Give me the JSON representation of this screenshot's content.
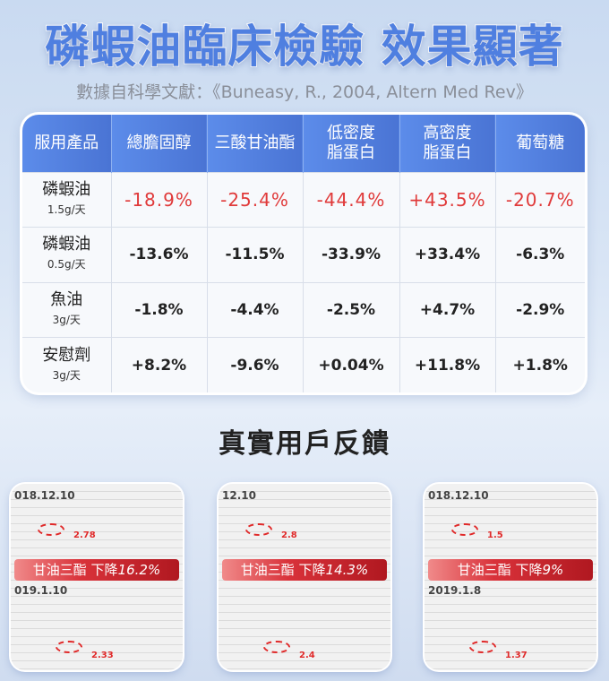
{
  "title": "磷蝦油臨床檢驗 效果顯著",
  "subtitle": "數據自科學文獻：《Buneasy, R., 2004, Altern Med Rev》",
  "table": {
    "headers": [
      "服用產品",
      "總膽固醇",
      "三酸甘油酯",
      "低密度\n脂蛋白",
      "高密度\n脂蛋白",
      "葡萄糖"
    ],
    "rows": [
      {
        "name": "磷蝦油",
        "dose": "1.5g/天",
        "values": [
          "-18.9%",
          "-25.4%",
          "-44.4%",
          "+43.5%",
          "-20.7%"
        ],
        "highlight": true
      },
      {
        "name": "磷蝦油",
        "dose": "0.5g/天",
        "values": [
          "-13.6%",
          "-11.5%",
          "-33.9%",
          "+33.4%",
          "-6.3%"
        ]
      },
      {
        "name": "魚油",
        "dose": "3g/天",
        "values": [
          "-1.8%",
          "-4.4%",
          "-2.5%",
          "+4.7%",
          "-2.9%"
        ]
      },
      {
        "name": "安慰劑",
        "dose": "3g/天",
        "values": [
          "+8.2%",
          "-9.6%",
          "+0.04%",
          "+11.8%",
          "+1.8%"
        ]
      }
    ]
  },
  "section_title": "真實用戶反饋",
  "cards": [
    {
      "date1": "018.12.10",
      "date2": "019.1.10",
      "before": "2.78",
      "after": "2.33",
      "label": "甘油三酯 下降",
      "pct": "16.2%"
    },
    {
      "date1": "12.10",
      "date2": "",
      "before": "2.8",
      "after": "2.4",
      "label": "甘油三酯 下降",
      "pct": "14.3%"
    },
    {
      "date1": "018.12.10",
      "date2": "2019.1.8",
      "before": "1.5",
      "after": "1.37",
      "label": "甘油三酯 下降",
      "pct": "9%"
    }
  ],
  "colors": {
    "accent": "#4f7fe0",
    "highlight": "#e03a3a",
    "banner": "#d9323a"
  }
}
